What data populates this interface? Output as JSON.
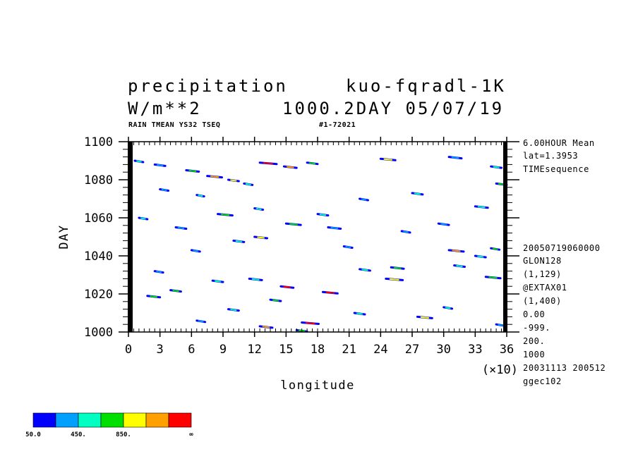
{
  "header": {
    "title_left": "precipitation",
    "title_right": "kuo-fqradl-1K",
    "units": "W/m**2",
    "time_label": "1000.2DAY 05/07/19",
    "subtitle_left": "RAIN TMEAN YS32 TSEQ",
    "subtitle_right": "#1-72021"
  },
  "side_info_top": [
    "6.00HOUR Mean",
    "lat=1.3953",
    "TIMEsequence"
  ],
  "side_info_bottom": [
    "20050719060000",
    "GLON128",
    "(1,129)",
    "@EXTAX01",
    "(1,400)",
    "0.00",
    "-999.",
    "200.",
    "1000",
    "20031113 200512",
    "ggec102"
  ],
  "colorbar": {
    "colors": [
      "#0000ff",
      "#00a0ff",
      "#00ffc0",
      "#00e000",
      "#ffff00",
      "#ffa000",
      "#ff0000"
    ],
    "labels": [
      "50.0",
      "450.",
      "850.",
      "∞"
    ]
  },
  "chart_data": {
    "type": "heatmap",
    "title": "precipitation",
    "xlabel": "longitude",
    "ylabel": "DAY",
    "x_multiplier": "(×10)",
    "xlim": [
      0,
      36
    ],
    "ylim": [
      1000,
      1100
    ],
    "x_ticks": [
      "0",
      "3",
      "6",
      "9",
      "12",
      "15",
      "18",
      "21",
      "24",
      "27",
      "30",
      "33",
      "36"
    ],
    "y_ticks": [
      "1000",
      "1020",
      "1040",
      "1060",
      "1080",
      "1100"
    ],
    "levels": [
      50,
      450,
      850
    ],
    "rain_streaks": [
      {
        "x": 0.6,
        "y": 1090,
        "len": 0.8,
        "level": 2
      },
      {
        "x": 2.5,
        "y": 1088,
        "len": 1.0,
        "level": 1
      },
      {
        "x": 5.5,
        "y": 1085,
        "len": 1.2,
        "level": 3
      },
      {
        "x": 7.5,
        "y": 1082,
        "len": 1.4,
        "level": 5
      },
      {
        "x": 9.5,
        "y": 1080,
        "len": 1.0,
        "level": 4
      },
      {
        "x": 11.0,
        "y": 1078,
        "len": 0.8,
        "level": 2
      },
      {
        "x": 12.5,
        "y": 1089,
        "len": 1.6,
        "level": 6
      },
      {
        "x": 14.8,
        "y": 1087,
        "len": 1.2,
        "level": 5
      },
      {
        "x": 17.0,
        "y": 1089,
        "len": 1.0,
        "level": 3
      },
      {
        "x": 24.0,
        "y": 1091,
        "len": 1.4,
        "level": 4
      },
      {
        "x": 27.0,
        "y": 1073,
        "len": 1.0,
        "level": 2
      },
      {
        "x": 30.5,
        "y": 1092,
        "len": 1.2,
        "level": 1
      },
      {
        "x": 34.5,
        "y": 1087,
        "len": 1.0,
        "level": 2
      },
      {
        "x": 3.0,
        "y": 1075,
        "len": 0.8,
        "level": 1
      },
      {
        "x": 6.5,
        "y": 1072,
        "len": 0.7,
        "level": 2
      },
      {
        "x": 8.5,
        "y": 1062,
        "len": 1.4,
        "level": 3
      },
      {
        "x": 12.0,
        "y": 1065,
        "len": 0.8,
        "level": 2
      },
      {
        "x": 15.0,
        "y": 1057,
        "len": 1.4,
        "level": 3
      },
      {
        "x": 18.0,
        "y": 1062,
        "len": 1.0,
        "level": 2
      },
      {
        "x": 19.0,
        "y": 1055,
        "len": 1.2,
        "level": 1
      },
      {
        "x": 12.0,
        "y": 1050,
        "len": 1.2,
        "level": 4
      },
      {
        "x": 10.0,
        "y": 1048,
        "len": 1.0,
        "level": 2
      },
      {
        "x": 29.5,
        "y": 1057,
        "len": 1.0,
        "level": 1
      },
      {
        "x": 30.5,
        "y": 1043,
        "len": 1.4,
        "level": 5
      },
      {
        "x": 33.0,
        "y": 1040,
        "len": 1.0,
        "level": 2
      },
      {
        "x": 34.5,
        "y": 1044,
        "len": 0.8,
        "level": 3
      },
      {
        "x": 34.0,
        "y": 1029,
        "len": 1.4,
        "level": 3
      },
      {
        "x": 31.0,
        "y": 1035,
        "len": 1.0,
        "level": 2
      },
      {
        "x": 25.0,
        "y": 1034,
        "len": 1.2,
        "level": 3
      },
      {
        "x": 24.5,
        "y": 1028,
        "len": 1.6,
        "level": 4
      },
      {
        "x": 22.0,
        "y": 1033,
        "len": 1.0,
        "level": 2
      },
      {
        "x": 18.5,
        "y": 1021,
        "len": 1.4,
        "level": 6
      },
      {
        "x": 14.5,
        "y": 1024,
        "len": 1.2,
        "level": 6
      },
      {
        "x": 13.5,
        "y": 1017,
        "len": 1.0,
        "level": 3
      },
      {
        "x": 11.5,
        "y": 1028,
        "len": 1.2,
        "level": 2
      },
      {
        "x": 8.0,
        "y": 1027,
        "len": 1.0,
        "level": 2
      },
      {
        "x": 4.0,
        "y": 1022,
        "len": 1.0,
        "level": 3
      },
      {
        "x": 1.8,
        "y": 1019,
        "len": 1.2,
        "level": 3
      },
      {
        "x": 2.5,
        "y": 1032,
        "len": 0.8,
        "level": 1
      },
      {
        "x": 6.0,
        "y": 1043,
        "len": 0.8,
        "level": 1
      },
      {
        "x": 16.5,
        "y": 1005,
        "len": 1.6,
        "level": 6
      },
      {
        "x": 12.5,
        "y": 1003,
        "len": 1.2,
        "level": 5
      },
      {
        "x": 16.0,
        "y": 1001,
        "len": 1.0,
        "level": 3
      },
      {
        "x": 21.5,
        "y": 1010,
        "len": 1.0,
        "level": 2
      },
      {
        "x": 27.5,
        "y": 1008,
        "len": 1.4,
        "level": 4
      },
      {
        "x": 30.0,
        "y": 1013,
        "len": 0.8,
        "level": 2
      },
      {
        "x": 35.0,
        "y": 1004,
        "len": 0.8,
        "level": 1
      },
      {
        "x": 6.5,
        "y": 1006,
        "len": 0.8,
        "level": 1
      },
      {
        "x": 9.5,
        "y": 1012,
        "len": 1.0,
        "level": 2
      },
      {
        "x": 20.5,
        "y": 1045,
        "len": 0.8,
        "level": 1
      },
      {
        "x": 26.0,
        "y": 1053,
        "len": 0.8,
        "level": 1
      },
      {
        "x": 33.0,
        "y": 1066,
        "len": 1.2,
        "level": 2
      },
      {
        "x": 35.0,
        "y": 1078,
        "len": 1.0,
        "level": 3
      },
      {
        "x": 22.0,
        "y": 1070,
        "len": 0.8,
        "level": 1
      },
      {
        "x": 1.0,
        "y": 1060,
        "len": 0.8,
        "level": 2
      },
      {
        "x": 4.5,
        "y": 1055,
        "len": 1.0,
        "level": 1
      }
    ]
  }
}
